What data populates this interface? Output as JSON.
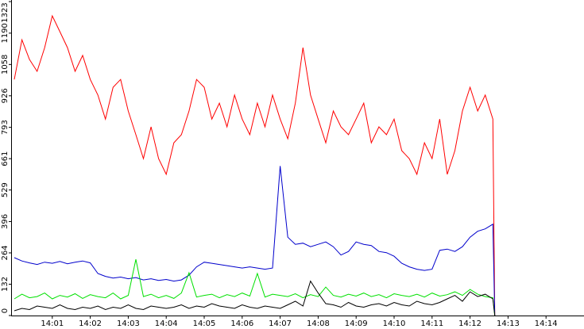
{
  "chart_data": {
    "type": "line",
    "x": [
      0,
      0.2,
      0.4,
      0.6,
      0.8,
      1,
      1.2,
      1.4,
      1.6,
      1.8,
      2,
      2.2,
      2.4,
      2.6,
      2.8,
      3,
      3.2,
      3.4,
      3.6,
      3.8,
      4,
      4.2,
      4.4,
      4.6,
      4.8,
      5,
      5.2,
      5.4,
      5.6,
      5.8,
      6,
      6.2,
      6.4,
      6.6,
      6.8,
      7,
      7.2,
      7.4,
      7.6,
      7.8,
      8,
      8.2,
      8.4,
      8.6,
      8.8,
      9,
      9.2,
      9.4,
      9.6,
      9.8,
      10,
      10.2,
      10.4,
      10.6,
      10.8,
      11,
      11.2,
      11.4,
      11.6,
      11.8,
      12,
      12.2,
      12.4,
      12.6,
      12.65
    ],
    "series": [
      {
        "color": "#ff0000",
        "values": [
          995,
          1162,
          1079,
          1029,
          1129,
          1263,
          1196,
          1129,
          1029,
          1096,
          995,
          929,
          828,
          962,
          995,
          862,
          762,
          661,
          795,
          661,
          595,
          728,
          762,
          862,
          995,
          962,
          828,
          895,
          795,
          929,
          828,
          762,
          895,
          795,
          929,
          828,
          745,
          895,
          1129,
          929,
          828,
          728,
          862,
          795,
          762,
          828,
          895,
          728,
          795,
          762,
          828,
          695,
          661,
          595,
          728,
          661,
          828,
          595,
          695,
          862,
          962,
          862,
          929,
          828,
          0
        ]
      },
      {
        "color": "#0000cc",
        "values": [
          244,
          230,
          222,
          215,
          225,
          220,
          228,
          218,
          225,
          230,
          222,
          177,
          165,
          158,
          162,
          155,
          160,
          150,
          155,
          148,
          152,
          145,
          150,
          170,
          205,
          225,
          220,
          215,
          210,
          205,
          200,
          205,
          200,
          195,
          200,
          630,
          330,
          300,
          305,
          290,
          300,
          310,
          290,
          255,
          270,
          310,
          300,
          295,
          270,
          265,
          250,
          220,
          205,
          195,
          190,
          195,
          275,
          280,
          270,
          290,
          330,
          355,
          365,
          385,
          0
        ]
      },
      {
        "color": "#00e000",
        "values": [
          70,
          90,
          75,
          80,
          95,
          70,
          85,
          78,
          92,
          72,
          88,
          80,
          75,
          95,
          70,
          85,
          237,
          80,
          90,
          75,
          85,
          72,
          95,
          180,
          78,
          85,
          90,
          75,
          88,
          80,
          95,
          82,
          177,
          78,
          90,
          85,
          80,
          92,
          75,
          88,
          80,
          120,
          85,
          78,
          90,
          82,
          95,
          80,
          88,
          75,
          92,
          85,
          80,
          90,
          78,
          95,
          82,
          88,
          100,
          85,
          110,
          90,
          80,
          75,
          0
        ]
      },
      {
        "color": "#000000",
        "values": [
          20,
          30,
          25,
          40,
          35,
          30,
          45,
          30,
          25,
          35,
          30,
          40,
          25,
          35,
          30,
          45,
          30,
          25,
          40,
          35,
          30,
          35,
          45,
          30,
          40,
          35,
          50,
          40,
          35,
          30,
          45,
          35,
          30,
          40,
          35,
          30,
          45,
          60,
          40,
          145,
          95,
          50,
          45,
          35,
          55,
          40,
          35,
          45,
          50,
          40,
          55,
          45,
          40,
          60,
          50,
          45,
          55,
          70,
          85,
          60,
          100,
          80,
          90,
          70,
          0
        ]
      }
    ],
    "xlim": [
      0,
      15
    ],
    "xticks": [
      {
        "value": 1,
        "label": "14:01"
      },
      {
        "value": 2,
        "label": "14:02"
      },
      {
        "value": 3,
        "label": "14:03"
      },
      {
        "value": 4,
        "label": "14:04"
      },
      {
        "value": 5,
        "label": "14:05"
      },
      {
        "value": 6,
        "label": "14:06"
      },
      {
        "value": 7,
        "label": "14:07"
      },
      {
        "value": 8,
        "label": "14:08"
      },
      {
        "value": 9,
        "label": "14:09"
      },
      {
        "value": 10,
        "label": "14:10"
      },
      {
        "value": 11,
        "label": "14:11"
      },
      {
        "value": 12,
        "label": "14:12"
      },
      {
        "value": 13,
        "label": "14:13"
      },
      {
        "value": 14,
        "label": "14:14"
      }
    ],
    "ylim": [
      0,
      1323
    ],
    "yticks": [
      0,
      132,
      264,
      396,
      529,
      661,
      793,
      926,
      1058,
      1190,
      1323
    ]
  }
}
